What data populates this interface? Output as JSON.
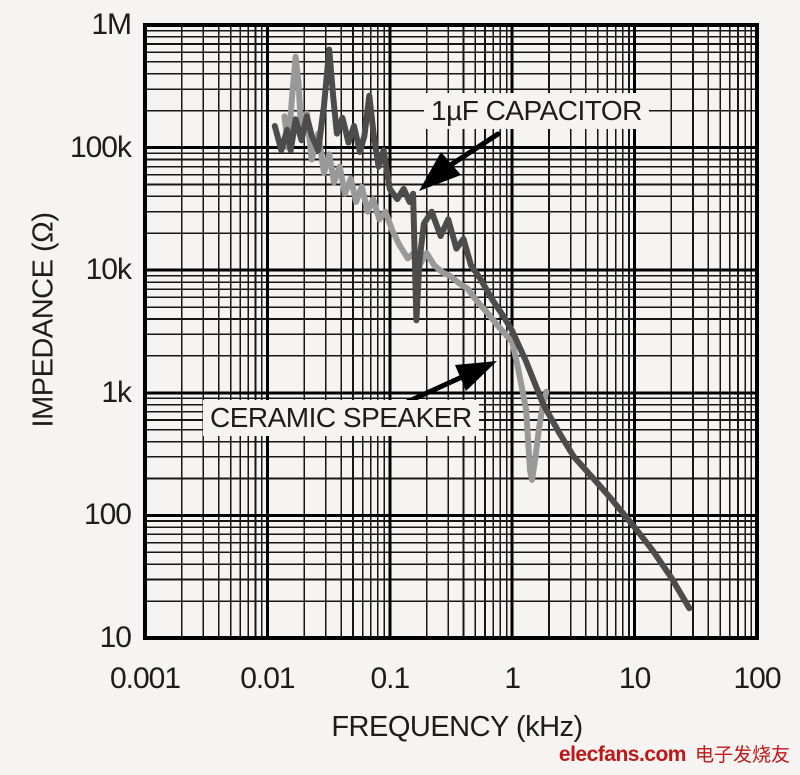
{
  "page": {
    "background": "#f5f4f2"
  },
  "watermark": {
    "site": "elecfans.com",
    "chinese": "电子发烧友",
    "color": "#c11616"
  },
  "chart_data": {
    "type": "line",
    "title": "",
    "xlabel": "FREQUENCY (kHz)",
    "ylabel": "IMPEDANCE (Ω)",
    "x_scale": "log",
    "y_scale": "log",
    "xlim": [
      0.001,
      100
    ],
    "ylim": [
      10,
      1000000
    ],
    "grid": "full log-log grid, major and minor lines, black on white",
    "legend_position": "none (inline annotated labels with arrows)",
    "x_ticks": [
      {
        "label": "0.001",
        "value": 0.001
      },
      {
        "label": "0.01",
        "value": 0.01
      },
      {
        "label": "0.1",
        "value": 0.1
      },
      {
        "label": "1",
        "value": 1
      },
      {
        "label": "10",
        "value": 10
      },
      {
        "label": "100",
        "value": 100
      }
    ],
    "y_ticks": [
      {
        "label": "1M",
        "value": 1000000
      },
      {
        "label": "100k",
        "value": 100000
      },
      {
        "label": "10k",
        "value": 10000
      },
      {
        "label": "1k",
        "value": 1000
      },
      {
        "label": "100",
        "value": 100
      },
      {
        "label": "10",
        "value": 10
      }
    ],
    "series": [
      {
        "name": "1µF CAPACITOR",
        "color": "#4c4c4c",
        "points": [
          [
            0.0115,
            150000
          ],
          [
            0.013,
            95000
          ],
          [
            0.0145,
            140000
          ],
          [
            0.0155,
            95000
          ],
          [
            0.017,
            170000
          ],
          [
            0.019,
            115000
          ],
          [
            0.021,
            180000
          ],
          [
            0.023,
            125000
          ],
          [
            0.026,
            95000
          ],
          [
            0.029,
            220000
          ],
          [
            0.032,
            630000
          ],
          [
            0.0345,
            260000
          ],
          [
            0.037,
            130000
          ],
          [
            0.041,
            175000
          ],
          [
            0.046,
            110000
          ],
          [
            0.051,
            150000
          ],
          [
            0.057,
            92000
          ],
          [
            0.062,
            125000
          ],
          [
            0.068,
            265000
          ],
          [
            0.074,
            125000
          ],
          [
            0.081,
            70000
          ],
          [
            0.089,
            95000
          ],
          [
            0.1,
            46000
          ],
          [
            0.115,
            38000
          ],
          [
            0.13,
            46000
          ],
          [
            0.145,
            36000
          ],
          [
            0.155,
            42000
          ],
          [
            0.165,
            3900
          ],
          [
            0.175,
            12000
          ],
          [
            0.19,
            24000
          ],
          [
            0.22,
            30000
          ],
          [
            0.26,
            19000
          ],
          [
            0.3,
            26000
          ],
          [
            0.35,
            15000
          ],
          [
            0.4,
            18000
          ],
          [
            0.46,
            11000
          ],
          [
            0.55,
            8500
          ],
          [
            0.7,
            5600
          ],
          [
            0.85,
            4200
          ],
          [
            1.0,
            3200
          ],
          [
            1.3,
            1800
          ],
          [
            1.8,
            800
          ],
          [
            2.4,
            480
          ],
          [
            3.2,
            300
          ],
          [
            4.7,
            195
          ],
          [
            6.5,
            135
          ],
          [
            10,
            80
          ],
          [
            14,
            52
          ],
          [
            20,
            31
          ],
          [
            28,
            17.5
          ]
        ]
      },
      {
        "name": "CERAMIC SPEAKER",
        "color": "#999999",
        "points": [
          [
            0.0138,
            180000
          ],
          [
            0.0148,
            100000
          ],
          [
            0.016,
            280000
          ],
          [
            0.017,
            550000
          ],
          [
            0.018,
            330000
          ],
          [
            0.019,
            120000
          ],
          [
            0.021,
            190000
          ],
          [
            0.023,
            80000
          ],
          [
            0.026,
            130000
          ],
          [
            0.029,
            62000
          ],
          [
            0.032,
            88000
          ],
          [
            0.035,
            52000
          ],
          [
            0.039,
            70000
          ],
          [
            0.043,
            42000
          ],
          [
            0.048,
            56000
          ],
          [
            0.053,
            36000
          ],
          [
            0.059,
            48000
          ],
          [
            0.066,
            30000
          ],
          [
            0.073,
            38000
          ],
          [
            0.082,
            26000
          ],
          [
            0.092,
            30000
          ],
          [
            0.105,
            21000
          ],
          [
            0.12,
            16000
          ],
          [
            0.14,
            12500
          ],
          [
            0.16,
            14000
          ],
          [
            0.18,
            11500
          ],
          [
            0.2,
            13800
          ],
          [
            0.23,
            11000
          ],
          [
            0.27,
            9600
          ],
          [
            0.31,
            9000
          ],
          [
            0.37,
            7800
          ],
          [
            0.43,
            7100
          ],
          [
            0.5,
            5800
          ],
          [
            0.55,
            5200
          ],
          [
            0.65,
            4300
          ],
          [
            0.75,
            3600
          ],
          [
            0.88,
            3000
          ],
          [
            1.0,
            2600
          ],
          [
            1.1,
            1700
          ],
          [
            1.2,
            1100
          ],
          [
            1.3,
            730
          ],
          [
            1.4,
            230
          ],
          [
            1.45,
            195
          ],
          [
            1.55,
            300
          ],
          [
            1.65,
            500
          ],
          [
            1.78,
            800
          ],
          [
            1.9,
            1020
          ]
        ]
      }
    ],
    "annotations": [
      {
        "text": "1µF CAPACITOR",
        "arrow_points_to": [
          0.17,
          44000
        ]
      },
      {
        "text": "CERAMIC SPEAKER",
        "arrow_points_to": [
          0.74,
          1800
        ]
      }
    ]
  }
}
